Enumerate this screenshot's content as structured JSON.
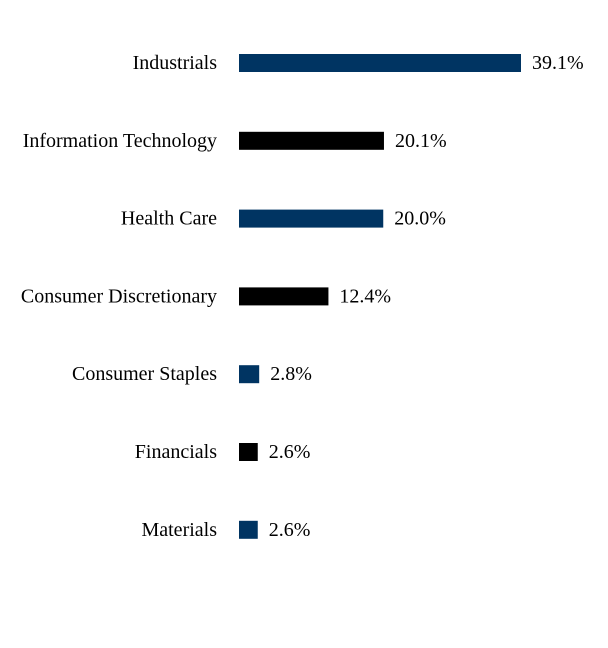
{
  "chart_data": {
    "type": "bar",
    "orientation": "horizontal",
    "categories": [
      "Industrials",
      "Information Technology",
      "Health Care",
      "Consumer Discretionary",
      "Consumer Staples",
      "Financials",
      "Materials"
    ],
    "values": [
      39.1,
      20.1,
      20.0,
      12.4,
      2.8,
      2.6,
      2.6
    ],
    "value_labels": [
      "39.1%",
      "20.1%",
      "20.0%",
      "12.4%",
      "2.8%",
      "2.6%",
      "2.6%"
    ],
    "bar_colors": [
      "#003462",
      "#000000",
      "#003462",
      "#000000",
      "#003462",
      "#000000",
      "#003462"
    ],
    "xlim": [
      0,
      39.1
    ],
    "grid": false,
    "legend": "none"
  }
}
